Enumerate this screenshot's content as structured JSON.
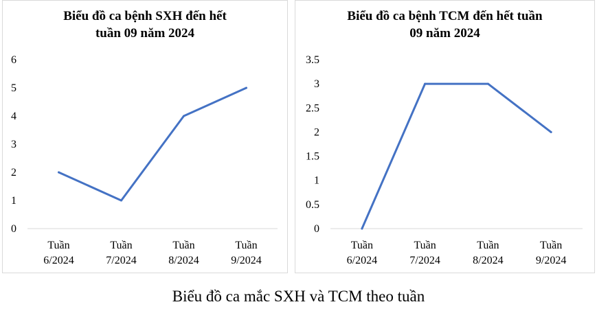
{
  "figure_caption": "Biểu đồ ca mắc SXH và TCM theo tuần",
  "colors": {
    "line": "#4472C4",
    "axis": "#d9d9d9",
    "panel_border": "#d9d9d9"
  },
  "chart_data": [
    {
      "type": "line",
      "title_lines": [
        "Biểu đồ ca bệnh SXH đến hết",
        "tuần 09 năm 2024"
      ],
      "categories": [
        [
          "Tuần",
          "6/2024"
        ],
        [
          "Tuần",
          "7/2024"
        ],
        [
          "Tuần",
          "8/2024"
        ],
        [
          "Tuần",
          "9/2024"
        ]
      ],
      "values": [
        2,
        1,
        4,
        5
      ],
      "ylim": [
        0,
        6
      ],
      "yticks": [
        "0",
        "1",
        "2",
        "3",
        "4",
        "5",
        "6"
      ],
      "xlabel": "",
      "ylabel": "",
      "grid": false,
      "legend": "none"
    },
    {
      "type": "line",
      "title_lines": [
        "Biểu đồ ca bệnh TCM đến hết tuần",
        "09 năm 2024"
      ],
      "categories": [
        [
          "Tuần",
          "6/2024"
        ],
        [
          "Tuần",
          "7/2024"
        ],
        [
          "Tuần",
          "8/2024"
        ],
        [
          "Tuần",
          "9/2024"
        ]
      ],
      "values": [
        0,
        3,
        3,
        2
      ],
      "ylim": [
        0,
        3.5
      ],
      "yticks": [
        "0",
        "0.5",
        "1",
        "1.5",
        "2",
        "2.5",
        "3",
        "3.5"
      ],
      "xlabel": "",
      "ylabel": "",
      "grid": false,
      "legend": "none"
    }
  ]
}
